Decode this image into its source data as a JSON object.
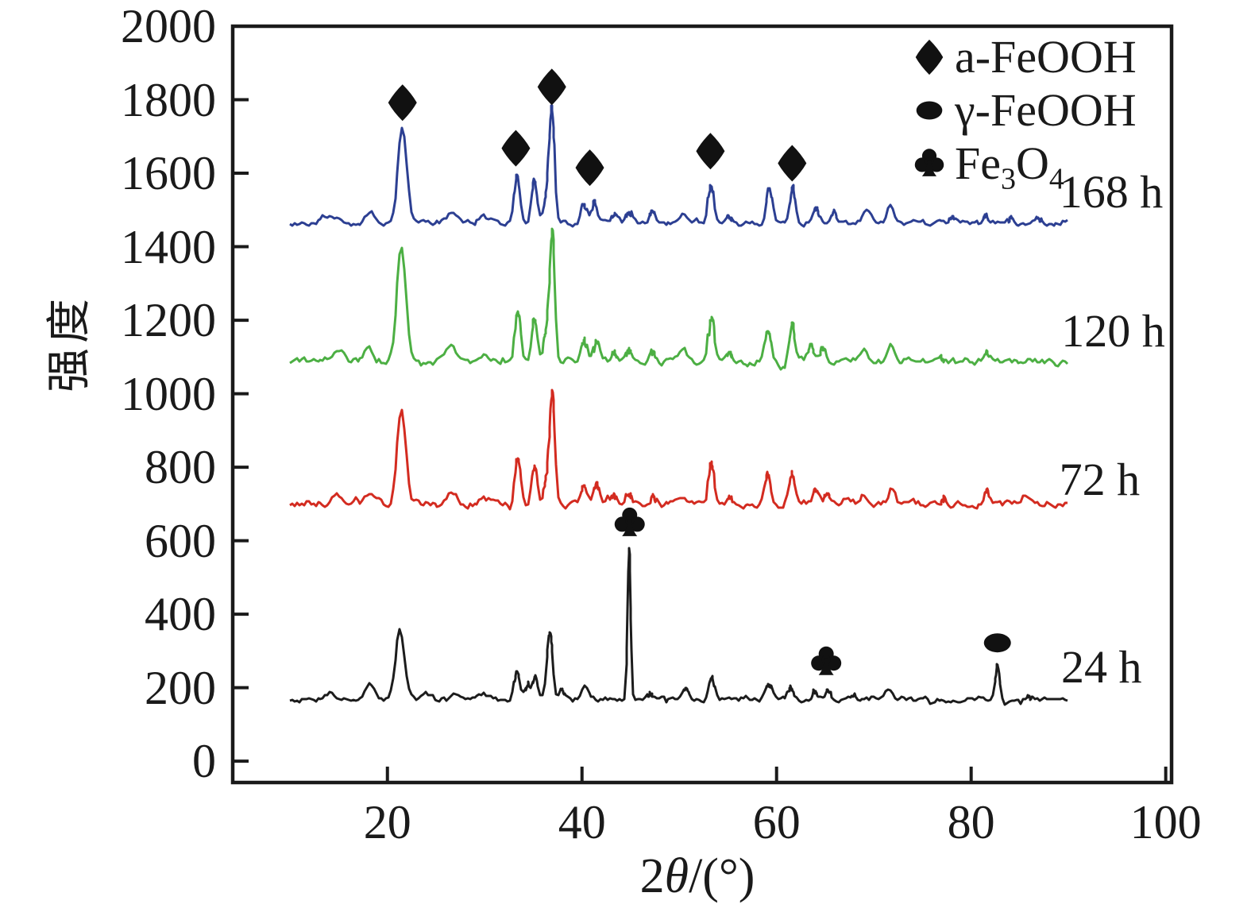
{
  "chart_data": {
    "type": "line",
    "chart_kind": "XRD diffraction patterns",
    "title": "",
    "xlabel": {
      "pre": "2",
      "theta": "θ",
      "post": "/(°)"
    },
    "ylabel": "强度",
    "xlim": [
      4.1,
      100.6
    ],
    "ylim": [
      -58,
      2000
    ],
    "x_data_range": [
      10,
      90
    ],
    "x_ticks": [
      20,
      40,
      60,
      80,
      100
    ],
    "y_ticks": [
      2000,
      1800,
      1600,
      1400,
      1200,
      1000,
      800,
      600,
      400,
      200,
      0
    ],
    "grid": false,
    "frame": true,
    "legend": {
      "position": "top-right",
      "items": [
        {
          "shape": "diamond",
          "label": "a-FeOOH"
        },
        {
          "shape": "oval",
          "label": "γ-FeOOH"
        },
        {
          "shape": "club",
          "parts": [
            "Fe",
            "3",
            "O",
            "4"
          ]
        }
      ]
    },
    "series": [
      {
        "id": "24h",
        "label": "24 h",
        "color": "#1c1c1c",
        "baseline": 168,
        "noise_amp": 5,
        "seed": 7,
        "label_pos": [
          93.4,
          255
        ],
        "peaks": [
          [
            14.0,
            20,
            0.5
          ],
          [
            18.2,
            40,
            0.4
          ],
          [
            21.3,
            192,
            0.48
          ],
          [
            24.0,
            12,
            0.4
          ],
          [
            26.8,
            22,
            0.5
          ],
          [
            30.0,
            16,
            0.5
          ],
          [
            33.3,
            76,
            0.3
          ],
          [
            34.4,
            34,
            0.25
          ],
          [
            35.2,
            62,
            0.26
          ],
          [
            36.7,
            180,
            0.3
          ],
          [
            38.0,
            26,
            0.3
          ],
          [
            40.3,
            42,
            0.35
          ],
          [
            44.85,
            415,
            0.17
          ],
          [
            47.0,
            16,
            0.3
          ],
          [
            50.7,
            26,
            0.3
          ],
          [
            53.35,
            60,
            0.3
          ],
          [
            59.2,
            42,
            0.3
          ],
          [
            61.5,
            32,
            0.3
          ],
          [
            63.9,
            20,
            0.28
          ],
          [
            65.3,
            26,
            0.25
          ],
          [
            67.9,
            12,
            0.3
          ],
          [
            71.4,
            24,
            0.35
          ],
          [
            82.7,
            95,
            0.22
          ],
          [
            86.0,
            8,
            0.3
          ]
        ],
        "markers": [
          {
            "shape": "club",
            "x": 44.9,
            "y": 648
          },
          {
            "shape": "club",
            "x": 65.1,
            "y": 270
          },
          {
            "shape": "oval",
            "x": 82.7,
            "y": 322
          }
        ]
      },
      {
        "id": "72h",
        "label": "72 h",
        "color": "#d32b20",
        "baseline": 700,
        "noise_amp": 7,
        "seed": 13,
        "label_pos": [
          93.2,
          765
        ],
        "peaks": [
          [
            15.0,
            26,
            0.6
          ],
          [
            18.1,
            26,
            0.4
          ],
          [
            21.45,
            262,
            0.46
          ],
          [
            26.6,
            30,
            0.5
          ],
          [
            30.0,
            12,
            0.5
          ],
          [
            33.4,
            122,
            0.3
          ],
          [
            35.1,
            104,
            0.28
          ],
          [
            36.3,
            58,
            0.25
          ],
          [
            36.95,
            302,
            0.28
          ],
          [
            40.2,
            52,
            0.3
          ],
          [
            41.5,
            50,
            0.3
          ],
          [
            43.3,
            20,
            0.3
          ],
          [
            44.8,
            30,
            0.3
          ],
          [
            47.3,
            22,
            0.3
          ],
          [
            50.5,
            24,
            0.35
          ],
          [
            53.3,
            112,
            0.3
          ],
          [
            55.2,
            16,
            0.3
          ],
          [
            59.1,
            78,
            0.3
          ],
          [
            61.6,
            86,
            0.28
          ],
          [
            64.0,
            34,
            0.3
          ],
          [
            65.2,
            24,
            0.3
          ],
          [
            69.0,
            22,
            0.4
          ],
          [
            71.8,
            40,
            0.35
          ],
          [
            77.2,
            12,
            0.3
          ],
          [
            81.6,
            32,
            0.3
          ],
          [
            86.0,
            12,
            0.4
          ]
        ],
        "markers": []
      },
      {
        "id": "120h",
        "label": "120 h",
        "color": "#4caf43",
        "baseline": 1088,
        "noise_amp": 7,
        "seed": 29,
        "label_pos": [
          94.6,
          1170
        ],
        "peaks": [
          [
            15.0,
            24,
            0.6
          ],
          [
            18.1,
            42,
            0.4
          ],
          [
            21.45,
            318,
            0.46
          ],
          [
            26.6,
            36,
            0.5
          ],
          [
            30.0,
            14,
            0.5
          ],
          [
            33.4,
            136,
            0.3
          ],
          [
            35.1,
            112,
            0.28
          ],
          [
            36.3,
            62,
            0.25
          ],
          [
            36.95,
            352,
            0.28
          ],
          [
            40.2,
            58,
            0.3
          ],
          [
            41.5,
            55,
            0.3
          ],
          [
            43.3,
            24,
            0.3
          ],
          [
            44.8,
            30,
            0.3
          ],
          [
            47.3,
            24,
            0.3
          ],
          [
            50.5,
            28,
            0.35
          ],
          [
            53.3,
            122,
            0.3
          ],
          [
            55.2,
            18,
            0.3
          ],
          [
            59.1,
            88,
            0.3
          ],
          [
            61.6,
            98,
            0.28
          ],
          [
            63.5,
            44,
            0.3
          ],
          [
            64.8,
            38,
            0.3
          ],
          [
            69.0,
            28,
            0.4
          ],
          [
            71.8,
            42,
            0.35
          ],
          [
            77.0,
            12,
            0.3
          ],
          [
            81.6,
            28,
            0.3
          ],
          [
            86.0,
            14,
            0.4
          ]
        ],
        "markers": []
      },
      {
        "id": "168h",
        "label": "168 h",
        "color": "#2c3f92",
        "baseline": 1465,
        "noise_amp": 6,
        "seed": 53,
        "label_pos": [
          94.4,
          1548
        ],
        "peaks": [
          [
            13.5,
            18,
            0.5
          ],
          [
            15.0,
            20,
            0.5
          ],
          [
            18.2,
            28,
            0.4
          ],
          [
            21.55,
            262,
            0.46
          ],
          [
            26.6,
            28,
            0.5
          ],
          [
            30.0,
            14,
            0.5
          ],
          [
            33.35,
            128,
            0.3
          ],
          [
            35.1,
            118,
            0.28
          ],
          [
            36.3,
            58,
            0.25
          ],
          [
            36.9,
            312,
            0.28
          ],
          [
            40.2,
            52,
            0.3
          ],
          [
            41.3,
            58,
            0.3
          ],
          [
            43.3,
            20,
            0.3
          ],
          [
            44.8,
            26,
            0.3
          ],
          [
            47.2,
            32,
            0.3
          ],
          [
            50.5,
            28,
            0.35
          ],
          [
            53.25,
            102,
            0.3
          ],
          [
            55.2,
            16,
            0.3
          ],
          [
            59.25,
            90,
            0.3
          ],
          [
            61.65,
            92,
            0.28
          ],
          [
            64.1,
            40,
            0.3
          ],
          [
            66.0,
            28,
            0.3
          ],
          [
            69.2,
            32,
            0.4
          ],
          [
            71.7,
            48,
            0.35
          ],
          [
            78.0,
            14,
            0.3
          ],
          [
            81.5,
            22,
            0.3
          ],
          [
            84.0,
            10,
            0.3
          ],
          [
            87.0,
            12,
            0.3
          ]
        ],
        "markers": [
          {
            "shape": "diamond",
            "x": 21.55,
            "y": 1792
          },
          {
            "shape": "diamond",
            "x": 33.2,
            "y": 1668
          },
          {
            "shape": "diamond",
            "x": 36.9,
            "y": 1835
          },
          {
            "shape": "diamond",
            "x": 40.8,
            "y": 1615
          },
          {
            "shape": "diamond",
            "x": 53.2,
            "y": 1660
          },
          {
            "shape": "diamond",
            "x": 61.6,
            "y": 1627
          }
        ]
      }
    ],
    "axis_color": "#1a1a1a"
  }
}
